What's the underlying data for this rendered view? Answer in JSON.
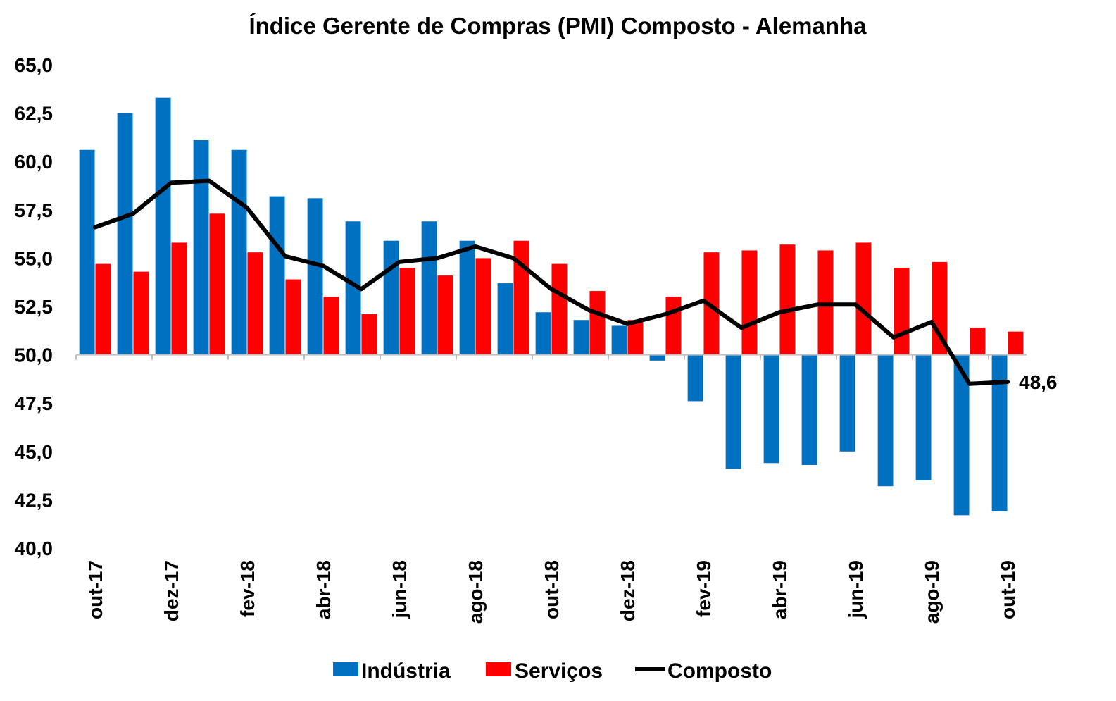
{
  "chart_data": {
    "type": "bar",
    "title": "Índice Gerente de Compras (PMI) Composto - Alemanha",
    "xlabel": "",
    "ylabel": "",
    "ylim": [
      40,
      65
    ],
    "baseline": 50,
    "y_ticks": [
      "40,0",
      "42,5",
      "45,0",
      "47,5",
      "50,0",
      "52,5",
      "55,0",
      "57,5",
      "60,0",
      "62,5",
      "65,0"
    ],
    "y_tick_values": [
      40,
      42.5,
      45,
      47.5,
      50,
      52.5,
      55,
      57.5,
      60,
      62.5,
      65
    ],
    "categories": [
      "out-17",
      "nov-17",
      "dez-17",
      "jan-18",
      "fev-18",
      "mar-18",
      "abr-18",
      "mai-18",
      "jun-18",
      "jul-18",
      "ago-18",
      "set-18",
      "out-18",
      "nov-18",
      "dez-18",
      "jan-19",
      "fev-19",
      "mar-19",
      "abr-19",
      "mai-19",
      "jun-19",
      "jul-19",
      "ago-19",
      "set-19",
      "out-19"
    ],
    "x_tick_labels": [
      "out-17",
      "dez-17",
      "fev-18",
      "abr-18",
      "jun-18",
      "ago-18",
      "out-18",
      "dez-18",
      "fev-19",
      "abr-19",
      "jun-19",
      "ago-19",
      "out-19"
    ],
    "x_tick_indices": [
      0,
      2,
      4,
      6,
      8,
      10,
      12,
      14,
      16,
      18,
      20,
      22,
      24
    ],
    "series": [
      {
        "name": "Indústria",
        "kind": "bar",
        "color": "#0070C0",
        "values": [
          60.6,
          62.5,
          63.3,
          61.1,
          60.6,
          58.2,
          58.1,
          56.9,
          55.9,
          56.9,
          55.9,
          53.7,
          52.2,
          51.8,
          51.5,
          49.7,
          47.6,
          44.1,
          44.4,
          44.3,
          45.0,
          43.2,
          43.5,
          41.7,
          41.9
        ]
      },
      {
        "name": "Serviços",
        "kind": "bar",
        "color": "#FF0000",
        "values": [
          54.7,
          54.3,
          55.8,
          57.3,
          55.3,
          53.9,
          53.0,
          52.1,
          54.5,
          54.1,
          55.0,
          55.9,
          54.7,
          53.3,
          51.8,
          53.0,
          55.3,
          55.4,
          55.7,
          55.4,
          55.8,
          54.5,
          54.8,
          51.4,
          51.2
        ]
      },
      {
        "name": "Composto",
        "kind": "line",
        "color": "#000000",
        "values": [
          56.6,
          57.3,
          58.9,
          59.0,
          57.6,
          55.1,
          54.6,
          53.4,
          54.8,
          55.0,
          55.6,
          55.0,
          53.4,
          52.3,
          51.6,
          52.1,
          52.8,
          51.4,
          52.2,
          52.6,
          52.6,
          50.9,
          51.7,
          48.5,
          48.6
        ]
      }
    ],
    "annotation": "48,6",
    "legend_position": "bottom"
  }
}
